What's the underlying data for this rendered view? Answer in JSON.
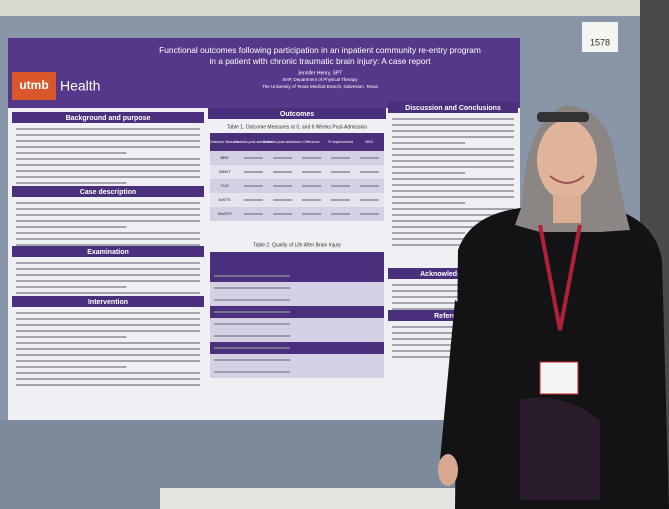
{
  "booth_number": "1578",
  "poster": {
    "title": [
      "Functional outcomes following participation in an inpatient community re-entry program",
      "in a patient with chronic traumatic brain injury: A case report"
    ],
    "author": "Jennifer Henry, SPT",
    "affiliation": "SHP, Department of Physical Therapy",
    "institution": "The University of Texas Medical Branch, Galveston, Texas",
    "logo": {
      "mark": "utmb",
      "name": "Health"
    },
    "left_sections": [
      "Background and purpose",
      "Case description",
      "Examination",
      "Intervention"
    ],
    "middle_section": "Outcomes",
    "right_sections": [
      "Discussion and Conclusions",
      "Acknowledgements",
      "References"
    ],
    "table1": {
      "title": "Table 1. Outcome Measures at 0, and 6 Weeks Post-Admission",
      "header": [
        "Outcome Measure",
        "0 weeks post-admission",
        "6 weeks post-admission",
        "Difference",
        "% Improvement",
        "MDC"
      ],
      "rows": [
        "BBS",
        "2MWT",
        "TUG",
        "5xSTS",
        "30sSTS"
      ]
    },
    "table2": {
      "title": "Table 2. Quality of Life After Brain Injury"
    }
  }
}
